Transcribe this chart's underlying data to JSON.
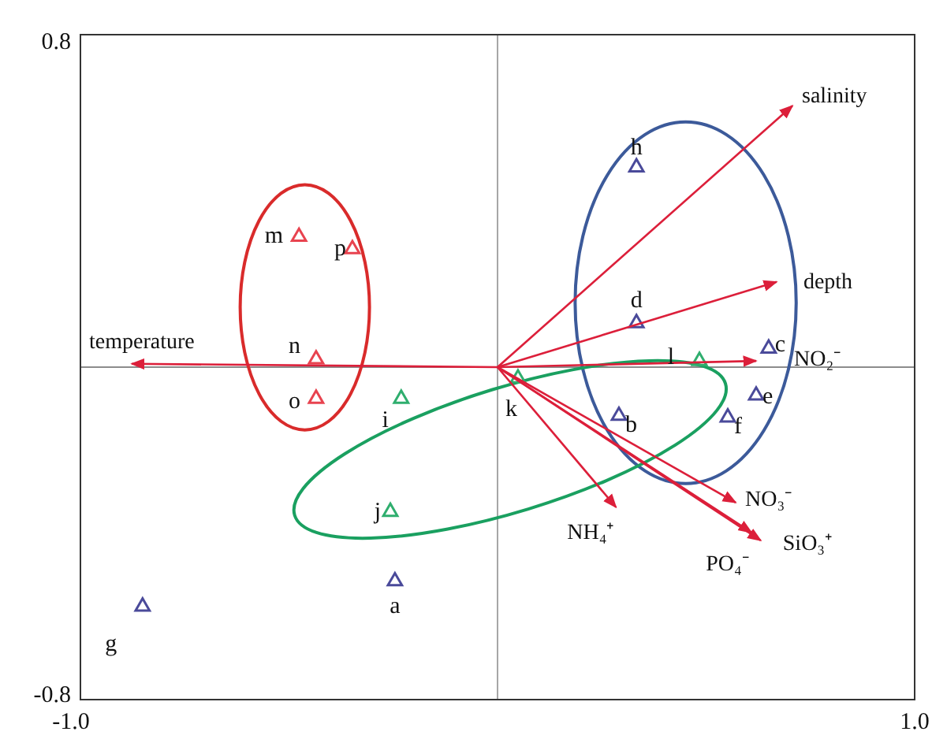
{
  "chart_data": {
    "type": "scatter",
    "marker": "triangle",
    "xlim": [
      -1.0,
      1.0
    ],
    "ylim": [
      -0.8,
      0.8
    ],
    "xticks": [
      {
        "value": -1.0,
        "label": "-1.0"
      },
      {
        "value": 1.0,
        "label": "1.0"
      }
    ],
    "yticks": [
      {
        "value": -0.8,
        "label": "-0.8"
      },
      {
        "value": 0.8,
        "label": "0.8"
      }
    ],
    "ref_lines": [
      {
        "axis": "x",
        "value": 0,
        "color": "#a6a6a6"
      },
      {
        "axis": "y",
        "value": 0,
        "color": "#8c8c8c"
      }
    ],
    "series": [
      {
        "color": "#e8434f",
        "x": [
          -0.476,
          -0.348,
          -0.435,
          -0.435
        ],
        "values": [
          0.314,
          0.284,
          0.019,
          -0.076
        ]
      },
      {
        "color": "#2fae6e",
        "x": [
          -0.231,
          -0.257,
          0.049,
          0.484
        ],
        "values": [
          -0.076,
          -0.348,
          -0.027,
          0.015
        ]
      },
      {
        "color": "#4a4a9a",
        "x": [
          -0.246,
          -0.851,
          0.333,
          0.333,
          0.65,
          0.62,
          0.552,
          0.291
        ],
        "values": [
          -0.515,
          -0.576,
          0.481,
          0.106,
          0.045,
          -0.068,
          -0.121,
          -0.117
        ]
      },
      {
        "type": "line",
        "marker": "none",
        "name": "salinity",
        "color": "#dc1f3a",
        "x": [
          0,
          0.707
        ],
        "values": [
          0,
          0.629
        ]
      },
      {
        "type": "line",
        "marker": "none",
        "name": "depth",
        "color": "#dc1f3a",
        "x": [
          0,
          0.669
        ],
        "values": [
          0,
          0.205
        ]
      },
      {
        "type": "line",
        "marker": "none",
        "name": "NO₂⁻",
        "color": "#dc1f3a",
        "x": [
          0,
          0.62
        ],
        "values": [
          0,
          0.015
        ]
      },
      {
        "type": "line",
        "marker": "none",
        "name": "temperature",
        "color": "#dc1f3a",
        "x": [
          0,
          -0.877
        ],
        "values": [
          0,
          0.008
        ]
      },
      {
        "type": "line",
        "marker": "none",
        "name": "NH₄⁺",
        "color": "#dc1f3a",
        "x": [
          0,
          0.284
        ],
        "values": [
          0,
          -0.337
        ]
      },
      {
        "type": "line",
        "marker": "none",
        "name": "NO₃⁻",
        "color": "#dc1f3a",
        "x": [
          0,
          0.571
        ],
        "values": [
          0,
          -0.326
        ]
      },
      {
        "type": "line",
        "marker": "none",
        "name": "SiO₃⁺",
        "color": "#dc1f3a",
        "x": [
          0,
          0.631
        ],
        "values": [
          0,
          -0.417
        ]
      },
      {
        "type": "line",
        "marker": "none",
        "name": "PO₄⁻",
        "color": "#dc1f3a",
        "x": [
          0,
          0.609
        ],
        "values": [
          0,
          -0.398
        ]
      }
    ],
    "annotations": [
      {
        "text": "m",
        "x": -0.476,
        "y": 0.314
      },
      {
        "text": "p",
        "x": -0.348,
        "y": 0.284
      },
      {
        "text": "n",
        "x": -0.435,
        "y": 0.019
      },
      {
        "text": "o",
        "x": -0.435,
        "y": -0.076
      },
      {
        "text": "i",
        "x": -0.231,
        "y": -0.076
      },
      {
        "text": "j",
        "x": -0.257,
        "y": -0.348
      },
      {
        "text": "k",
        "x": 0.049,
        "y": -0.027
      },
      {
        "text": "l",
        "x": 0.484,
        "y": 0.015
      },
      {
        "text": "a",
        "x": -0.246,
        "y": -0.515
      },
      {
        "text": "g",
        "x": -0.851,
        "y": -0.576
      },
      {
        "text": "h",
        "x": 0.333,
        "y": 0.481
      },
      {
        "text": "d",
        "x": 0.333,
        "y": 0.106
      },
      {
        "text": "c",
        "x": 0.65,
        "y": 0.045
      },
      {
        "text": "e",
        "x": 0.62,
        "y": -0.068
      },
      {
        "text": "f",
        "x": 0.552,
        "y": -0.121
      },
      {
        "text": "b",
        "x": 0.291,
        "y": -0.117
      }
    ]
  }
}
